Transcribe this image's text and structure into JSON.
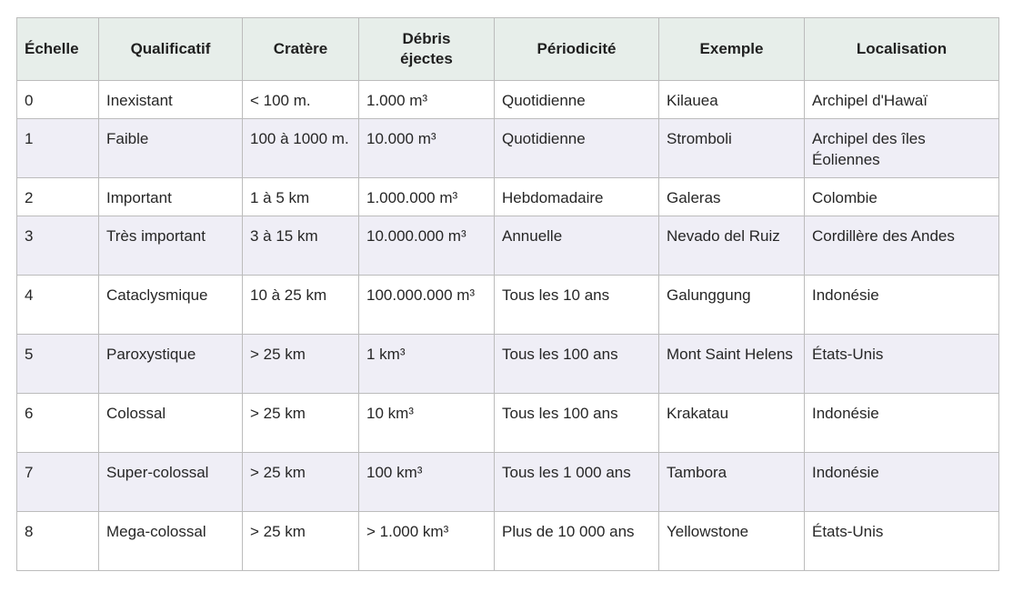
{
  "table": {
    "headers": [
      "Échelle",
      "Qualificatif",
      "Cratère",
      "Débris éjectes",
      "Périodicité",
      "Exemple",
      "Localisation"
    ],
    "rows": [
      [
        "0",
        "Inexistant",
        "< 100 m.",
        "1.000 m³",
        "Quotidienne",
        "Kilauea",
        "Archipel d'Hawaï"
      ],
      [
        "1",
        "Faible",
        "100 à 1000 m.",
        "10.000 m³",
        "Quotidienne",
        "Stromboli",
        "Archipel des îles Éoliennes"
      ],
      [
        "2",
        "Important",
        "1 à 5 km",
        "1.000.000 m³",
        "Hebdomadaire",
        "Galeras",
        "Colombie"
      ],
      [
        "3",
        "Très important",
        "3 à 15 km",
        "10.000.000 m³",
        "Annuelle",
        "Nevado del Ruiz",
        "Cordillère des Andes"
      ],
      [
        "4",
        "Cataclysmique",
        "10 à 25 km",
        "100.000.000 m³",
        "Tous les 10 ans",
        "Galunggung",
        "Indonésie"
      ],
      [
        "5",
        "Paroxystique",
        "> 25 km",
        "1 km³",
        "Tous les 100 ans",
        "Mont Saint Helens",
        "États-Unis"
      ],
      [
        "6",
        "Colossal",
        "> 25 km",
        "10 km³",
        "Tous les 100 ans",
        "Krakatau",
        "Indonésie"
      ],
      [
        "7",
        "Super-colossal",
        "> 25 km",
        "100 km³",
        "Tous les 1 000 ans",
        "Tambora",
        "Indonésie"
      ],
      [
        "8",
        "Mega-colossal",
        "> 25 km",
        "> 1.000 km³",
        "Plus de 10 000 ans",
        "Yellowstone",
        "États-Unis"
      ]
    ]
  }
}
